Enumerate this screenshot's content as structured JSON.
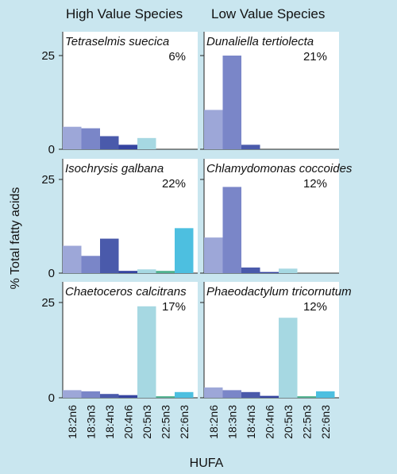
{
  "column_titles": [
    "High Value Species",
    "Low Value Species"
  ],
  "ylabel": "% Total fatty acids",
  "xlabel": "HUFA",
  "colors": [
    "#9da7d8",
    "#7a86c8",
    "#4a5aab",
    "#3544a0",
    "#a6d8e2",
    "#4fb28f",
    "#4dbfe0"
  ],
  "chart_data": [
    {
      "type": "bar",
      "title": "Tetraselmis suecica",
      "annotation": "6%",
      "categories": [
        "18:2n6",
        "18:3n3",
        "18:4n3",
        "20:4n6",
        "20:5n3",
        "22:5n3",
        "22:6n3"
      ],
      "values": [
        6.0,
        5.6,
        3.5,
        1.2,
        3.0,
        0,
        0
      ],
      "ylim": [
        0,
        25
      ],
      "yticks": [
        0,
        25
      ]
    },
    {
      "type": "bar",
      "title": "Dunaliella tertiolecta",
      "annotation": "21%",
      "categories": [
        "18:2n6",
        "18:3n3",
        "18:4n3",
        "20:4n6",
        "20:5n3",
        "22:5n3",
        "22:6n3"
      ],
      "values": [
        10.5,
        25.0,
        1.2,
        0,
        0,
        0,
        0
      ],
      "ylim": [
        0,
        25
      ],
      "yticks": [
        0,
        25
      ]
    },
    {
      "type": "bar",
      "title": "Isochrysis galbana",
      "annotation": "22%",
      "categories": [
        "18:2n6",
        "18:3n3",
        "18:4n3",
        "20:4n6",
        "20:5n3",
        "22:5n3",
        "22:6n3"
      ],
      "values": [
        7.3,
        4.6,
        9.2,
        0.6,
        1.0,
        0.6,
        12.0
      ],
      "ylim": [
        0,
        25
      ],
      "yticks": [
        0,
        25
      ]
    },
    {
      "type": "bar",
      "title": "Chlamydomonas coccoides",
      "annotation": "12%",
      "categories": [
        "18:2n6",
        "18:3n3",
        "18:4n3",
        "20:4n6",
        "20:5n3",
        "22:5n3",
        "22:6n3"
      ],
      "values": [
        9.5,
        23.0,
        1.5,
        0.3,
        1.2,
        0,
        0
      ],
      "ylim": [
        0,
        25
      ],
      "yticks": [
        0,
        25
      ]
    },
    {
      "type": "bar",
      "title": "Chaetoceros calcitrans",
      "annotation": "17%",
      "categories": [
        "18:2n6",
        "18:3n3",
        "18:4n3",
        "20:4n6",
        "20:5n3",
        "22:5n3",
        "22:6n3"
      ],
      "values": [
        2.0,
        1.7,
        1.0,
        0.7,
        24.0,
        0.4,
        1.5
      ],
      "ylim": [
        0,
        25
      ],
      "yticks": [
        0,
        25
      ]
    },
    {
      "type": "bar",
      "title": "Phaeodactylum tricornutum",
      "annotation": "12%",
      "categories": [
        "18:2n6",
        "18:3n3",
        "18:4n3",
        "20:4n6",
        "20:5n3",
        "22:5n3",
        "22:6n3"
      ],
      "values": [
        2.7,
        2.0,
        1.5,
        0.5,
        21.0,
        0.4,
        1.7
      ],
      "ylim": [
        0,
        25
      ],
      "yticks": [
        0,
        25
      ]
    }
  ]
}
